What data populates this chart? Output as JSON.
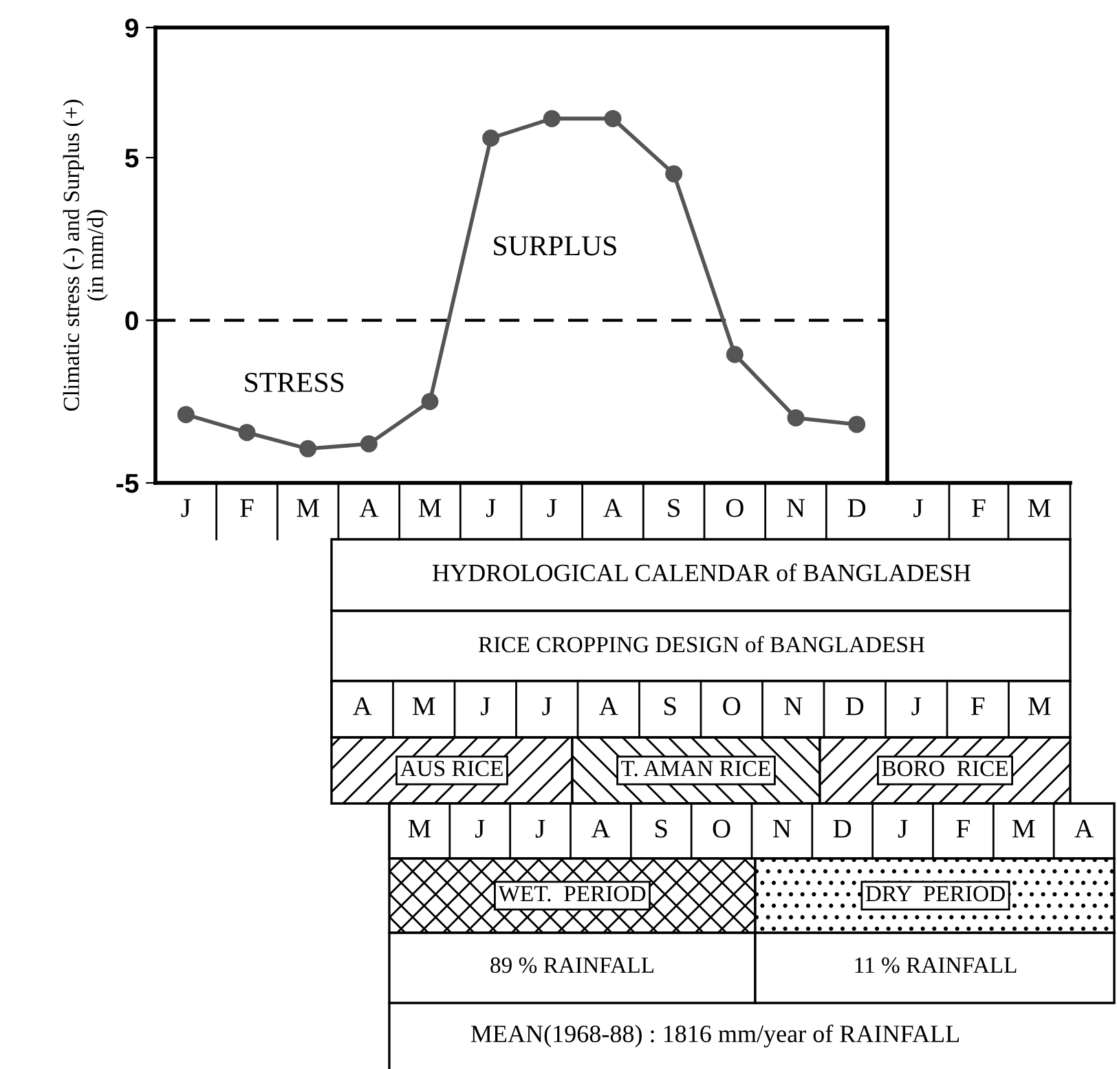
{
  "chart_data": {
    "type": "line",
    "ylabel": "Climatic stress (-) and Surplus (+)\n(in mm/d)",
    "categories": [
      "J",
      "F",
      "M",
      "A",
      "M",
      "J",
      "J",
      "A",
      "S",
      "O",
      "N",
      "D"
    ],
    "series": [
      {
        "color": "#555555",
        "values": [
          -2.9,
          -3.45,
          -3.95,
          -3.8,
          -2.5,
          5.6,
          6.2,
          6.2,
          4.5,
          -1.05,
          -3.0,
          -3.2
        ]
      }
    ],
    "marker": "circle",
    "line_style": "solid",
    "ylim": [
      -5,
      9
    ],
    "yticks": [
      -5,
      0,
      5,
      9
    ],
    "ref_lines": [
      {
        "axis": "y",
        "value": 0,
        "color": "#000000",
        "line_style": "dashed"
      }
    ],
    "annotations": [
      "STRESS",
      "SURPLUS",
      "J",
      "F",
      "M",
      "HYDROLOGICAL CALENDAR of BANGLADESH",
      "RICE CROPPING DESIGN of BANGLADESH",
      "A",
      "M",
      "J",
      "J",
      "A",
      "S",
      "O",
      "N",
      "D",
      "J",
      "F",
      "M",
      "AUS RICE",
      "T. AMAN RICE",
      "BORO  RICE",
      "M",
      "J",
      "J",
      "A",
      "S",
      "O",
      "N",
      "D",
      "J",
      "F",
      "M",
      "A",
      "WET.  PERIOD",
      "DRY  PERIOD",
      "89 % RAINFALL",
      "11 % RAINFALL",
      "MEAN(1968-88) : 1816 mm/year of RAINFALL"
    ]
  }
}
